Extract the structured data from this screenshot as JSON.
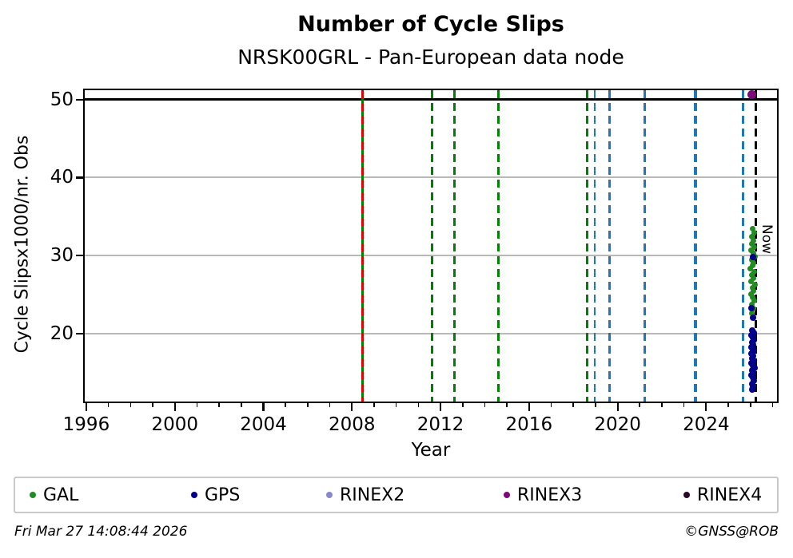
{
  "title": "Number of Cycle Slips",
  "subtitle": "NRSK00GRL - Pan-European data node",
  "footer_left": "Fri Mar 27 14:08:44 2026",
  "footer_right": "©GNSS@ROB",
  "legend": [
    {
      "label": "GAL",
      "color": "#228B22"
    },
    {
      "label": "GPS",
      "color": "#00008B"
    },
    {
      "label": "RINEX2",
      "color": "#8888cc"
    },
    {
      "label": "RINEX3",
      "color": "#7b0b7b"
    },
    {
      "label": "RINEX4",
      "color": "#2a082a"
    }
  ],
  "chart_data": {
    "type": "scatter",
    "title": "Number of Cycle Slips",
    "subtitle": "NRSK00GRL - Pan-European data node",
    "xlabel": "Year",
    "ylabel": "Cycle Slipsx1000/nr. Obs",
    "xlim": [
      1995.93,
      2027.2
    ],
    "ylim": [
      11.3,
      51.2
    ],
    "x_major_ticks": [
      1996,
      2000,
      2004,
      2008,
      2012,
      2016,
      2020,
      2024
    ],
    "x_minor_tick_step": 1,
    "y_major_ticks": [
      20,
      30,
      40,
      50
    ],
    "gridlines_y": [
      20,
      30,
      40
    ],
    "hlines": [
      {
        "y": 50,
        "color": "#000000",
        "width": 3
      }
    ],
    "grid_color": "#b8b8b8",
    "now_line": {
      "x": 2026.24,
      "label": "Now",
      "color": "#000000",
      "label_y": 34
    },
    "event_lines": [
      {
        "x": 2008.47,
        "color": "#008000",
        "style": "solid",
        "width": 3
      },
      {
        "x": 2008.47,
        "color": "#dd0000",
        "style": "dashed",
        "width": 3
      },
      {
        "x": 2011.63,
        "color": "#008000",
        "style": "dashed",
        "width": 3
      },
      {
        "x": 2012.64,
        "color": "#008000",
        "style": "dashed",
        "width": 3
      },
      {
        "x": 2014.62,
        "color": "#008000",
        "style": "dashed",
        "width": 3
      },
      {
        "x": 2018.63,
        "color": "#008000",
        "style": "dashed",
        "width": 3
      },
      {
        "x": 2018.95,
        "color": "#1f77b4",
        "style": "dashed",
        "width": 2
      },
      {
        "x": 2019.64,
        "color": "#1f77b4",
        "style": "dashed",
        "width": 3
      },
      {
        "x": 2021.22,
        "color": "#1f77b4",
        "style": "dashed",
        "width": 3
      },
      {
        "x": 2023.5,
        "color": "#1f77b4",
        "style": "dashed",
        "width": 4
      },
      {
        "x": 2025.67,
        "color": "#1f77b4",
        "style": "dashed",
        "width": 2.5
      },
      {
        "x": 2026.24,
        "color": "#000000",
        "style": "dashed",
        "width": 2.5
      }
    ],
    "series": [
      {
        "name": "GAL",
        "color": "#228B22",
        "point_size": 7,
        "points": [
          [
            2026.1,
            33.5
          ],
          [
            2026.16,
            32.9
          ],
          [
            2026.05,
            32.4
          ],
          [
            2026.14,
            31.9
          ],
          [
            2026.08,
            31.5
          ],
          [
            2026.18,
            31.1
          ],
          [
            2026.02,
            30.7
          ],
          [
            2026.12,
            30.3
          ],
          [
            2026.2,
            29.9
          ],
          [
            2026.06,
            29.5
          ],
          [
            2026.15,
            29.1
          ],
          [
            2026.1,
            28.7
          ],
          [
            2026.0,
            28.3
          ],
          [
            2026.17,
            27.9
          ],
          [
            2026.08,
            27.5
          ],
          [
            2026.13,
            27.1
          ],
          [
            2026.04,
            26.7
          ],
          [
            2026.19,
            26.3
          ],
          [
            2026.09,
            25.9
          ],
          [
            2026.14,
            25.5
          ],
          [
            2026.03,
            25.1
          ],
          [
            2026.11,
            24.7
          ],
          [
            2026.17,
            24.2
          ],
          [
            2026.07,
            23.7
          ],
          [
            2026.12,
            23.2
          ],
          [
            2026.05,
            22.6
          ],
          [
            2026.15,
            22.1
          ]
        ]
      },
      {
        "name": "GPS",
        "color": "#00008B",
        "point_size": 8,
        "points": [
          [
            2026.1,
            29.8
          ],
          [
            2026.06,
            23.3
          ],
          [
            2026.12,
            22.0
          ],
          [
            2026.08,
            20.4
          ],
          [
            2026.14,
            20.1
          ],
          [
            2026.05,
            19.8
          ],
          [
            2026.11,
            19.5
          ],
          [
            2026.17,
            19.2
          ],
          [
            2026.07,
            18.9
          ],
          [
            2026.13,
            18.6
          ],
          [
            2026.03,
            18.3
          ],
          [
            2026.1,
            18.0
          ],
          [
            2026.16,
            17.7
          ],
          [
            2026.06,
            17.4
          ],
          [
            2026.12,
            17.1
          ],
          [
            2026.09,
            16.8
          ],
          [
            2026.15,
            16.5
          ],
          [
            2026.04,
            16.2
          ],
          [
            2026.11,
            15.9
          ],
          [
            2026.18,
            15.6
          ],
          [
            2026.08,
            15.3
          ],
          [
            2026.13,
            15.0
          ],
          [
            2026.05,
            14.7
          ],
          [
            2026.1,
            14.4
          ],
          [
            2026.16,
            14.0
          ],
          [
            2026.07,
            13.6
          ],
          [
            2026.12,
            13.2
          ],
          [
            2026.09,
            12.8
          ]
        ]
      },
      {
        "name": "RINEX2",
        "color": "#8888cc",
        "point_size": 8,
        "points": []
      },
      {
        "name": "RINEX3",
        "color": "#7b0b7b",
        "point_size": 11,
        "points": [
          [
            2026.05,
            50.6
          ]
        ]
      },
      {
        "name": "RINEX4",
        "color": "#2a082a",
        "point_size": 8,
        "points": []
      }
    ]
  }
}
